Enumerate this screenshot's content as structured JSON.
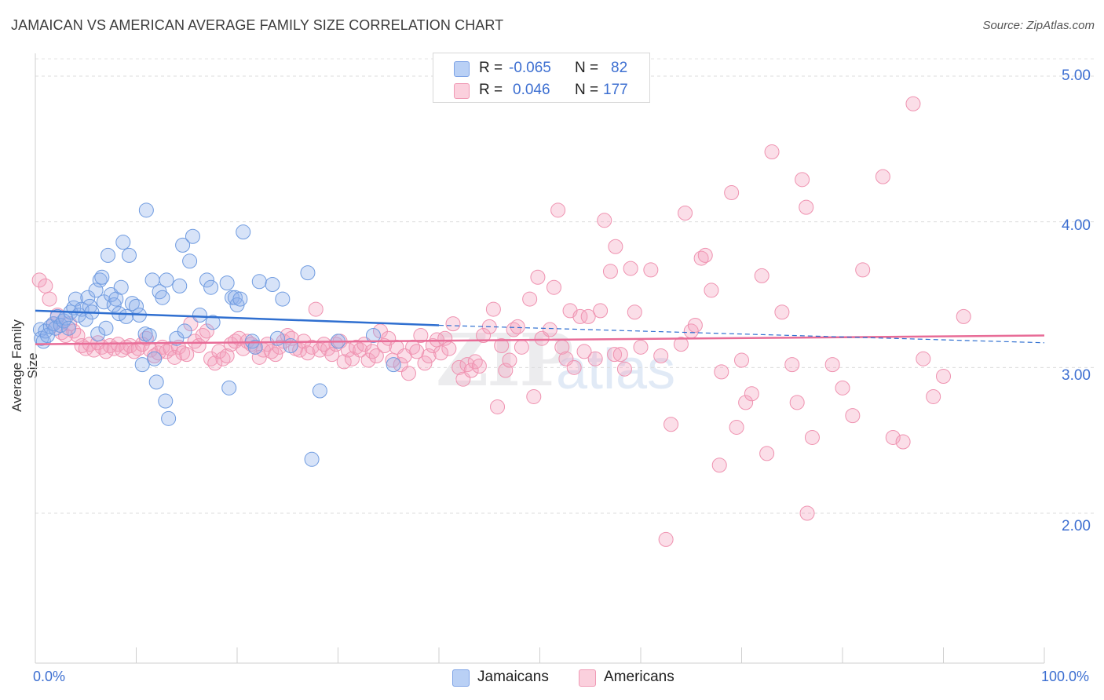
{
  "title": "JAMAICAN VS AMERICAN AVERAGE FAMILY SIZE CORRELATION CHART",
  "source": "Source: ZipAtlas.com",
  "watermark": {
    "zip": "ZIP",
    "atlas": "atlas"
  },
  "legend": {
    "rows": [
      {
        "r_label": "R =",
        "r_value": "-0.065",
        "n_label": "N =",
        "n_value": "82",
        "color": "#a9c4f0"
      },
      {
        "r_label": "R =",
        "r_value": "0.046",
        "n_label": "N =",
        "n_value": "177",
        "color": "#f7b9cc"
      }
    ]
  },
  "bottom_legend": {
    "series1": "Jamaicans",
    "series2": "Americans"
  },
  "x_ticks": {
    "left": "0.0%",
    "right": "100.0%"
  },
  "y_ticks": [
    "5.00",
    "4.00",
    "3.00",
    "2.00"
  ],
  "chart_data": {
    "type": "scatter",
    "title": "JAMAICAN VS AMERICAN AVERAGE FAMILY SIZE CORRELATION CHART",
    "xlabel": "",
    "ylabel": "Average Family Size",
    "xlim": [
      0,
      100
    ],
    "ylim": [
      1.0,
      5.25
    ],
    "y_ticks": [
      2.0,
      3.0,
      4.0,
      5.0
    ],
    "grid": true,
    "legend_placement": "top-center",
    "colors": {
      "Jamaicans": "#6f9be0",
      "Americans": "#ef92b0",
      "jam_line": "#2f6fd0",
      "am_line": "#e86c97"
    },
    "series": [
      {
        "name": "Jamaicans",
        "R": -0.065,
        "N": 82,
        "trend": {
          "x": [
            0,
            40
          ],
          "y": [
            3.39,
            3.29
          ],
          "dashed_to": [
            100,
            3.17
          ]
        },
        "points": [
          [
            0.5,
            3.26
          ],
          [
            0.6,
            3.2
          ],
          [
            0.8,
            3.18
          ],
          [
            1,
            3.25
          ],
          [
            1.2,
            3.22
          ],
          [
            1.5,
            3.28
          ],
          [
            1.8,
            3.3
          ],
          [
            2,
            3.27
          ],
          [
            2.2,
            3.35
          ],
          [
            2.5,
            3.29
          ],
          [
            2.8,
            3.32
          ],
          [
            3,
            3.34
          ],
          [
            3.3,
            3.27
          ],
          [
            3.5,
            3.38
          ],
          [
            3.8,
            3.41
          ],
          [
            4,
            3.47
          ],
          [
            4.3,
            3.36
          ],
          [
            4.6,
            3.4
          ],
          [
            5,
            3.33
          ],
          [
            5.2,
            3.48
          ],
          [
            5.4,
            3.42
          ],
          [
            5.6,
            3.38
          ],
          [
            6,
            3.53
          ],
          [
            6.2,
            3.23
          ],
          [
            6.4,
            3.6
          ],
          [
            6.6,
            3.62
          ],
          [
            6.8,
            3.45
          ],
          [
            7,
            3.27
          ],
          [
            7.2,
            3.77
          ],
          [
            7.5,
            3.5
          ],
          [
            7.8,
            3.43
          ],
          [
            8,
            3.47
          ],
          [
            8.3,
            3.37
          ],
          [
            8.5,
            3.55
          ],
          [
            8.7,
            3.86
          ],
          [
            9,
            3.35
          ],
          [
            9.3,
            3.77
          ],
          [
            9.6,
            3.44
          ],
          [
            10,
            3.42
          ],
          [
            10.3,
            3.36
          ],
          [
            10.6,
            3.02
          ],
          [
            10.9,
            3.23
          ],
          [
            11,
            4.08
          ],
          [
            11.3,
            3.22
          ],
          [
            11.6,
            3.6
          ],
          [
            11.8,
            3.06
          ],
          [
            12,
            2.9
          ],
          [
            12.3,
            3.52
          ],
          [
            12.6,
            3.48
          ],
          [
            12.9,
            2.77
          ],
          [
            13,
            3.6
          ],
          [
            13.2,
            2.65
          ],
          [
            14,
            3.2
          ],
          [
            14.3,
            3.56
          ],
          [
            14.6,
            3.84
          ],
          [
            14.8,
            3.25
          ],
          [
            15.3,
            3.73
          ],
          [
            15.6,
            3.9
          ],
          [
            16.3,
            3.36
          ],
          [
            17,
            3.6
          ],
          [
            17.4,
            3.55
          ],
          [
            17.6,
            3.31
          ],
          [
            19,
            3.58
          ],
          [
            19.2,
            2.86
          ],
          [
            19.5,
            3.48
          ],
          [
            19.8,
            3.48
          ],
          [
            20,
            3.43
          ],
          [
            20.3,
            3.47
          ],
          [
            20.6,
            3.93
          ],
          [
            21.5,
            3.18
          ],
          [
            21.8,
            3.14
          ],
          [
            22.2,
            3.59
          ],
          [
            23.5,
            3.57
          ],
          [
            24,
            3.2
          ],
          [
            24.5,
            3.47
          ],
          [
            25.3,
            3.15
          ],
          [
            27,
            3.65
          ],
          [
            27.4,
            2.37
          ],
          [
            28.2,
            2.84
          ],
          [
            35.5,
            3.02
          ],
          [
            33.5,
            3.22
          ],
          [
            30,
            3.18
          ]
        ]
      },
      {
        "name": "Americans",
        "R": 0.046,
        "N": 177,
        "trend": {
          "x": [
            0,
            100
          ],
          "y": [
            3.16,
            3.22
          ]
        },
        "points": [
          [
            0.4,
            3.6
          ],
          [
            1,
            3.56
          ],
          [
            1.4,
            3.47
          ],
          [
            1.8,
            3.3
          ],
          [
            2.2,
            3.36
          ],
          [
            2.6,
            3.24
          ],
          [
            3,
            3.22
          ],
          [
            3.4,
            3.3
          ],
          [
            3.8,
            3.25
          ],
          [
            4.2,
            3.22
          ],
          [
            4.6,
            3.15
          ],
          [
            5,
            3.13
          ],
          [
            5.4,
            3.16
          ],
          [
            5.8,
            3.12
          ],
          [
            6.2,
            3.17
          ],
          [
            6.6,
            3.14
          ],
          [
            7,
            3.11
          ],
          [
            7.4,
            3.15
          ],
          [
            7.8,
            3.13
          ],
          [
            8.2,
            3.16
          ],
          [
            8.6,
            3.12
          ],
          [
            9,
            3.14
          ],
          [
            9.4,
            3.15
          ],
          [
            9.8,
            3.11
          ],
          [
            10.2,
            3.13
          ],
          [
            10.6,
            3.16
          ],
          [
            11,
            3.2
          ],
          [
            11.4,
            3.12
          ],
          [
            11.8,
            3.08
          ],
          [
            12.2,
            3.1
          ],
          [
            12.6,
            3.14
          ],
          [
            13,
            3.11
          ],
          [
            13.4,
            3.13
          ],
          [
            13.8,
            3.07
          ],
          [
            14.2,
            3.14
          ],
          [
            14.6,
            3.1
          ],
          [
            15,
            3.09
          ],
          [
            15.4,
            3.3
          ],
          [
            15.8,
            3.18
          ],
          [
            16.2,
            3.15
          ],
          [
            16.6,
            3.22
          ],
          [
            17,
            3.25
          ],
          [
            17.4,
            3.06
          ],
          [
            17.8,
            3.03
          ],
          [
            18.2,
            3.11
          ],
          [
            18.6,
            3.06
          ],
          [
            19,
            3.08
          ],
          [
            19.4,
            3.16
          ],
          [
            19.8,
            3.18
          ],
          [
            20.2,
            3.2
          ],
          [
            20.6,
            3.13
          ],
          [
            21,
            3.18
          ],
          [
            21.4,
            3.16
          ],
          [
            21.8,
            3.14
          ],
          [
            22.2,
            3.07
          ],
          [
            22.6,
            3.12
          ],
          [
            23,
            3.16
          ],
          [
            23.4,
            3.11
          ],
          [
            23.8,
            3.09
          ],
          [
            24.2,
            3.14
          ],
          [
            24.6,
            3.18
          ],
          [
            25,
            3.22
          ],
          [
            25.4,
            3.2
          ],
          [
            25.8,
            3.13
          ],
          [
            26.2,
            3.12
          ],
          [
            26.6,
            3.18
          ],
          [
            27,
            3.1
          ],
          [
            27.4,
            3.14
          ],
          [
            27.8,
            3.4
          ],
          [
            28.2,
            3.12
          ],
          [
            28.6,
            3.16
          ],
          [
            29,
            3.13
          ],
          [
            29.4,
            3.09
          ],
          [
            29.8,
            3.16
          ],
          [
            30.2,
            3.18
          ],
          [
            30.6,
            3.04
          ],
          [
            31,
            3.12
          ],
          [
            31.4,
            3.06
          ],
          [
            31.8,
            3.14
          ],
          [
            32.2,
            3.12
          ],
          [
            32.6,
            3.16
          ],
          [
            33,
            3.05
          ],
          [
            33.4,
            3.11
          ],
          [
            33.8,
            3.08
          ],
          [
            34.2,
            3.25
          ],
          [
            34.6,
            3.15
          ],
          [
            35,
            3.2
          ],
          [
            35.4,
            3.05
          ],
          [
            35.8,
            3.14
          ],
          [
            36.2,
            3.02
          ],
          [
            36.6,
            3.08
          ],
          [
            37,
            2.96
          ],
          [
            37.4,
            3.14
          ],
          [
            37.8,
            3.11
          ],
          [
            38.2,
            3.22
          ],
          [
            38.6,
            3.03
          ],
          [
            39,
            3.08
          ],
          [
            39.4,
            3.15
          ],
          [
            39.8,
            3.19
          ],
          [
            40.2,
            3.1
          ],
          [
            40.6,
            3.2
          ],
          [
            41,
            3.13
          ],
          [
            41.4,
            3.3
          ],
          [
            42,
            3.0
          ],
          [
            42.4,
            2.92
          ],
          [
            42.8,
            3.02
          ],
          [
            43.2,
            2.98
          ],
          [
            43.6,
            3.04
          ],
          [
            44,
            3.01
          ],
          [
            44.4,
            3.22
          ],
          [
            45,
            3.28
          ],
          [
            45.4,
            3.4
          ],
          [
            45.8,
            2.73
          ],
          [
            46.2,
            3.15
          ],
          [
            46.6,
            2.98
          ],
          [
            47,
            3.05
          ],
          [
            47.4,
            3.26
          ],
          [
            47.8,
            3.28
          ],
          [
            48.2,
            3.14
          ],
          [
            49,
            3.47
          ],
          [
            49.4,
            2.8
          ],
          [
            49.8,
            3.62
          ],
          [
            50.2,
            3.2
          ],
          [
            51,
            3.26
          ],
          [
            51.4,
            3.55
          ],
          [
            51.8,
            4.08
          ],
          [
            52.2,
            3.14
          ],
          [
            52.6,
            3.06
          ],
          [
            53,
            3.39
          ],
          [
            53.4,
            3.0
          ],
          [
            54,
            3.35
          ],
          [
            54.4,
            3.11
          ],
          [
            54.8,
            3.35
          ],
          [
            55.5,
            3.06
          ],
          [
            56,
            3.39
          ],
          [
            56.4,
            4.01
          ],
          [
            57,
            3.66
          ],
          [
            57.4,
            3.09
          ],
          [
            58,
            3.09
          ],
          [
            58.4,
            2.99
          ],
          [
            59,
            3.68
          ],
          [
            59.4,
            3.38
          ],
          [
            60,
            3.14
          ],
          [
            61,
            3.67
          ],
          [
            62,
            3.08
          ],
          [
            63,
            2.61
          ],
          [
            64,
            3.16
          ],
          [
            64.4,
            4.06
          ],
          [
            65,
            3.25
          ],
          [
            65.4,
            3.29
          ],
          [
            66,
            3.75
          ],
          [
            66.4,
            3.77
          ],
          [
            67,
            3.53
          ],
          [
            68,
            2.97
          ],
          [
            69,
            4.2
          ],
          [
            70,
            3.05
          ],
          [
            70.4,
            2.76
          ],
          [
            71,
            2.82
          ],
          [
            72,
            3.63
          ],
          [
            73,
            4.48
          ],
          [
            74,
            3.38
          ],
          [
            75,
            3.02
          ],
          [
            76,
            4.29
          ],
          [
            76.4,
            4.1
          ],
          [
            77,
            2.52
          ],
          [
            79,
            3.02
          ],
          [
            80,
            2.86
          ],
          [
            81,
            2.67
          ],
          [
            82,
            3.67
          ],
          [
            84,
            4.31
          ],
          [
            85,
            2.52
          ],
          [
            86,
            2.49
          ],
          [
            87,
            4.81
          ],
          [
            88,
            3.06
          ],
          [
            89,
            2.8
          ],
          [
            90,
            2.94
          ],
          [
            92,
            3.35
          ],
          [
            62.5,
            1.82
          ],
          [
            67.8,
            2.33
          ],
          [
            69.5,
            2.59
          ],
          [
            76.5,
            2.0
          ],
          [
            57.5,
            3.83
          ],
          [
            72.5,
            2.41
          ],
          [
            75.5,
            2.76
          ]
        ]
      }
    ]
  }
}
